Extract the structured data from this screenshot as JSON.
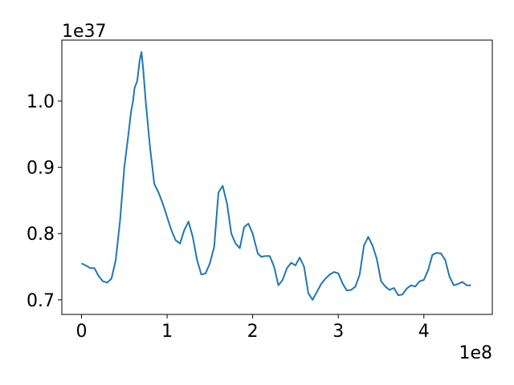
{
  "chart_data": {
    "type": "line",
    "title": "",
    "xlabel": "",
    "ylabel": "",
    "x_offset_label": "1e8",
    "y_offset_label": "1e37",
    "xlim": [
      -0.23,
      4.8
    ],
    "ylim": [
      0.678,
      1.092
    ],
    "x_ticks": [
      0,
      1,
      2,
      3,
      4
    ],
    "x_tick_labels": [
      "0",
      "1",
      "2",
      "3",
      "4"
    ],
    "y_ticks": [
      0.7,
      0.8,
      0.9,
      1.0
    ],
    "y_tick_labels": [
      "0.7",
      "0.8",
      "0.9",
      "1.0"
    ],
    "grid": false,
    "legend": "none",
    "line_color": "#1f77b4",
    "series": [
      {
        "x": [
          0.0,
          0.05,
          0.1,
          0.15,
          0.2,
          0.25,
          0.3,
          0.35,
          0.4,
          0.45,
          0.5,
          0.55,
          0.58,
          0.6,
          0.62,
          0.65,
          0.68,
          0.7,
          0.72,
          0.75,
          0.8,
          0.85,
          0.9,
          0.95,
          1.0,
          1.05,
          1.1,
          1.15,
          1.2,
          1.25,
          1.3,
          1.35,
          1.4,
          1.45,
          1.5,
          1.55,
          1.6,
          1.65,
          1.7,
          1.75,
          1.8,
          1.85,
          1.9,
          1.95,
          2.0,
          2.03,
          2.06,
          2.1,
          2.15,
          2.2,
          2.25,
          2.3,
          2.35,
          2.4,
          2.45,
          2.5,
          2.55,
          2.6,
          2.65,
          2.7,
          2.75,
          2.8,
          2.85,
          2.9,
          2.95,
          3.0,
          3.05,
          3.1,
          3.15,
          3.2,
          3.25,
          3.3,
          3.35,
          3.4,
          3.45,
          3.5,
          3.55,
          3.6,
          3.65,
          3.7,
          3.75,
          3.8,
          3.85,
          3.9,
          3.95,
          4.0,
          4.05,
          4.1,
          4.15,
          4.2,
          4.25,
          4.3,
          4.35,
          4.4,
          4.45,
          4.5,
          4.55
        ],
        "y": [
          0.755,
          0.752,
          0.748,
          0.748,
          0.736,
          0.728,
          0.726,
          0.732,
          0.76,
          0.82,
          0.9,
          0.952,
          0.985,
          0.998,
          1.02,
          1.03,
          1.062,
          1.074,
          1.05,
          1.0,
          0.93,
          0.875,
          0.862,
          0.845,
          0.825,
          0.805,
          0.79,
          0.785,
          0.805,
          0.818,
          0.795,
          0.76,
          0.738,
          0.74,
          0.755,
          0.78,
          0.862,
          0.872,
          0.845,
          0.8,
          0.785,
          0.778,
          0.81,
          0.815,
          0.8,
          0.785,
          0.77,
          0.765,
          0.766,
          0.766,
          0.75,
          0.722,
          0.73,
          0.748,
          0.756,
          0.752,
          0.764,
          0.75,
          0.71,
          0.7,
          0.712,
          0.724,
          0.732,
          0.738,
          0.742,
          0.74,
          0.725,
          0.714,
          0.715,
          0.72,
          0.738,
          0.782,
          0.795,
          0.782,
          0.762,
          0.728,
          0.72,
          0.715,
          0.718,
          0.707,
          0.708,
          0.717,
          0.722,
          0.72,
          0.728,
          0.73,
          0.745,
          0.768,
          0.771,
          0.77,
          0.76,
          0.735,
          0.722,
          0.724,
          0.727,
          0.722,
          0.722
        ]
      }
    ]
  }
}
